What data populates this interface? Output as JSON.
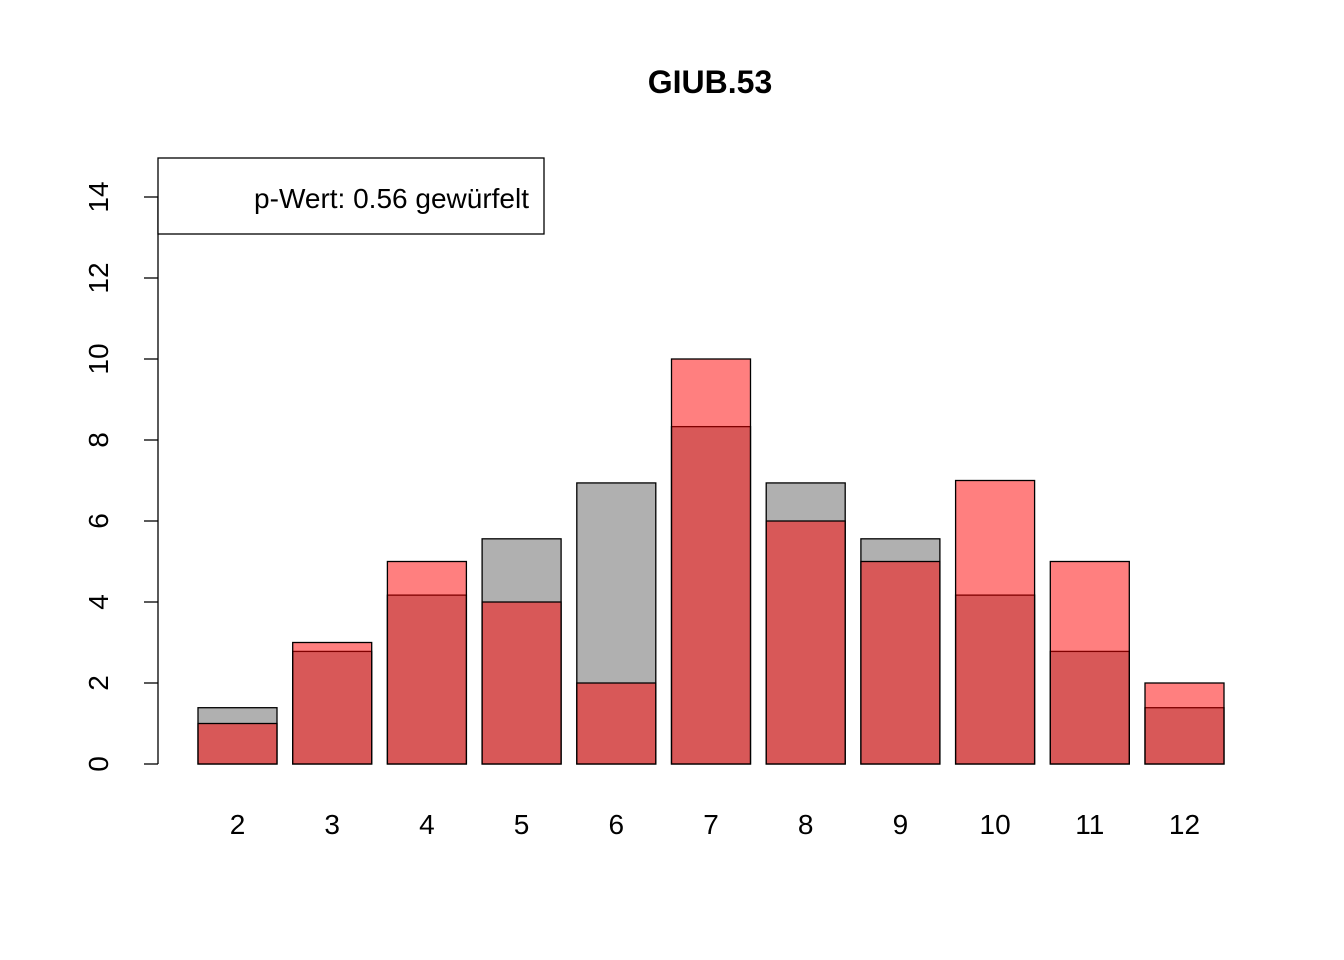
{
  "chart_data": {
    "type": "bar",
    "title": "GIUB.53",
    "xlabel": "",
    "ylabel": "",
    "categories": [
      "2",
      "3",
      "4",
      "5",
      "6",
      "7",
      "8",
      "9",
      "10",
      "11",
      "12"
    ],
    "series": [
      {
        "values": [
          1.39,
          2.78,
          4.17,
          5.56,
          6.94,
          8.33,
          6.94,
          5.56,
          4.17,
          2.78,
          1.39
        ],
        "color": "#b0b0b0"
      },
      {
        "values": [
          1,
          3,
          5,
          4,
          2,
          10,
          6,
          5,
          7,
          5,
          2
        ],
        "color": "rgba(255,0,0,0.5)"
      }
    ],
    "ylim": [
      0,
      15
    ],
    "yticks": [
      0,
      2,
      4,
      6,
      8,
      10,
      12,
      14
    ],
    "legend": {
      "text": "p-Wert: 0.56 gewürfelt",
      "position": "top-left"
    },
    "grid": false
  }
}
